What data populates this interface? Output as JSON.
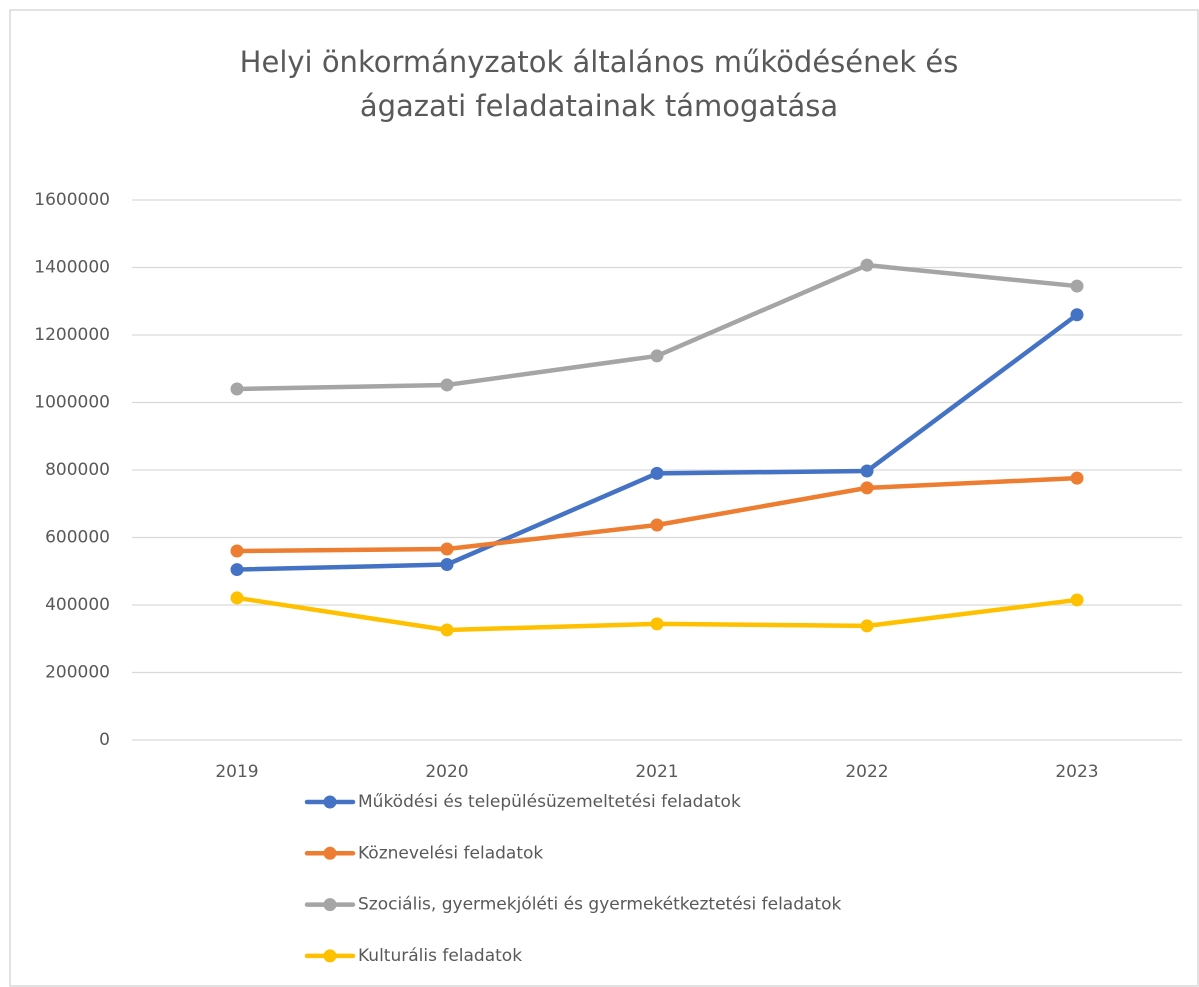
{
  "chart_data": {
    "type": "line",
    "title": "Helyi önkormányzatok általános működésének és ágazati feladatainak támogatása",
    "categories": [
      "2019",
      "2020",
      "2021",
      "2022",
      "2023"
    ],
    "series": [
      {
        "name": "Működési és településüzemeltetési feladatok",
        "color": "#4472c4",
        "values": [
          505000,
          520000,
          790000,
          797000,
          1260000
        ]
      },
      {
        "name": "Köznevelési feladatok",
        "color": "#ed7d31",
        "values": [
          560000,
          566000,
          637000,
          747000,
          776000
        ]
      },
      {
        "name": "Szociális, gyermekjóléti és gyermekétkeztetési feladatok",
        "color": "#a5a5a5",
        "values": [
          1040000,
          1052000,
          1138000,
          1407000,
          1345000
        ]
      },
      {
        "name": "Kulturális feladatok",
        "color": "#ffc000",
        "values": [
          421000,
          326000,
          344000,
          338000,
          415000
        ]
      }
    ],
    "ylim": [
      0,
      1600000
    ],
    "yticks": [
      0,
      200000,
      400000,
      600000,
      800000,
      1000000,
      1200000,
      1400000,
      1600000
    ],
    "grid": true,
    "legend": "bottom"
  }
}
